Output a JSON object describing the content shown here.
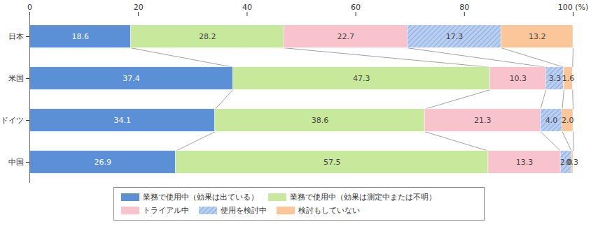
{
  "chart_data": {
    "type": "bar",
    "orientation": "horizontal",
    "stacked": true,
    "data_labels": true,
    "categories": [
      "日本",
      "米国",
      "ドイツ",
      "中国"
    ],
    "xlim": [
      0,
      100
    ],
    "xticks": [
      0,
      20,
      40,
      60,
      80,
      {
        "value": 100,
        "label": "100 (%)"
      }
    ],
    "series": [
      {
        "name": "業務で使用中（効果は出ている）",
        "color": "#5b8fd6",
        "values": [
          18.6,
          37.4,
          34.1,
          26.9
        ]
      },
      {
        "name": "業務で使用中（効果は測定中または不明）",
        "color": "#c8e89c",
        "values": [
          28.2,
          47.3,
          38.6,
          57.5
        ]
      },
      {
        "name": "トライアル中",
        "color": "#f9c3ce",
        "values": [
          22.7,
          10.3,
          21.3,
          13.3
        ]
      },
      {
        "name": "使用を検討中",
        "color": "#b9cff2",
        "values": [
          17.3,
          3.3,
          4.0,
          2.0
        ],
        "value_labels": [
          "17.3",
          "3.3",
          "4.0",
          "2.0"
        ]
      },
      {
        "name": "検討もしていない",
        "color": "#fbc79a",
        "values": [
          13.2,
          1.6,
          2.0,
          0.3
        ],
        "value_labels": [
          "13.2",
          "1.6",
          "2.0",
          "0.3"
        ]
      }
    ]
  }
}
